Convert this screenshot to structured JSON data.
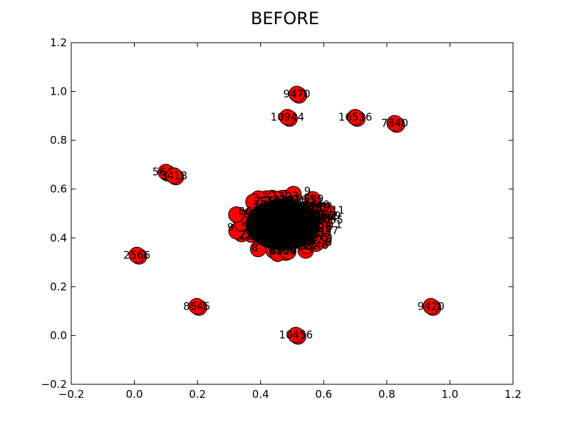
{
  "chart_data": {
    "type": "scatter",
    "title": "BEFORE",
    "xlabel": "",
    "ylabel": "",
    "xlim": [
      -0.2,
      1.2
    ],
    "ylim": [
      -0.2,
      1.2
    ],
    "xticks": [
      -0.2,
      0.0,
      0.2,
      0.4,
      0.6,
      0.8,
      1.0,
      1.2
    ],
    "yticks": [
      -0.2,
      0.0,
      0.2,
      0.4,
      0.6,
      0.8,
      1.0,
      1.2
    ],
    "xtick_labels": [
      "−0.2",
      "0.0",
      "0.2",
      "0.4",
      "0.6",
      "0.8",
      "1.0",
      "1.2"
    ],
    "ytick_labels": [
      "−0.2",
      "0.0",
      "0.2",
      "0.4",
      "0.6",
      "0.8",
      "1.0",
      "1.2"
    ],
    "grid": false,
    "node_color": "#ff0000",
    "edge_color": "#000000",
    "outliers": [
      {
        "x": 0.515,
        "y": 0.99,
        "label": "9470"
      },
      {
        "x": 0.485,
        "y": 0.895,
        "label": "10944"
      },
      {
        "x": 0.7,
        "y": 0.895,
        "label": "16536"
      },
      {
        "x": 0.825,
        "y": 0.87,
        "label": "7840"
      },
      {
        "x": 0.1,
        "y": 0.67,
        "label": "5642"
      },
      {
        "x": 0.125,
        "y": 0.655,
        "label": "3418"
      },
      {
        "x": 0.008,
        "y": 0.33,
        "label": "2566"
      },
      {
        "x": 0.198,
        "y": 0.12,
        "label": "8645"
      },
      {
        "x": 0.94,
        "y": 0.12,
        "label": "9420"
      },
      {
        "x": 0.512,
        "y": 0.002,
        "label": "10456"
      }
    ],
    "cluster": {
      "center": [
        0.47,
        0.46
      ],
      "edge_labels": [
        "1",
        "3",
        "8",
        "9",
        "9",
        "11",
        "19",
        "2",
        "4",
        "6"
      ]
    }
  }
}
